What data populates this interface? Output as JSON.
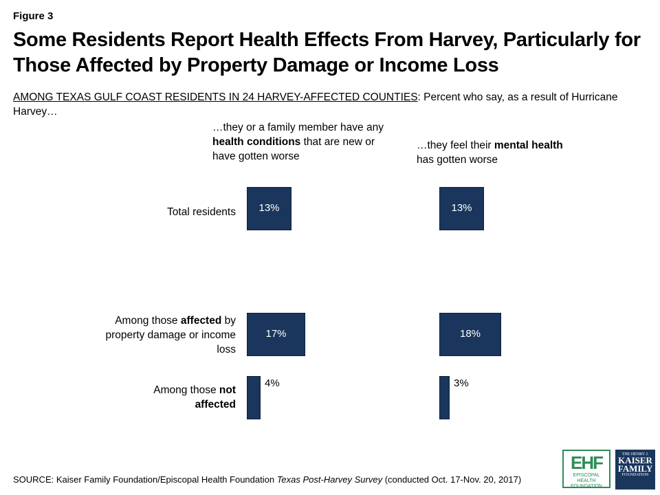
{
  "figure_label": "Figure 3",
  "title": "Some Residents Report Health Effects From Harvey, Particularly for Those Affected by Property Damage or Income Loss",
  "subtitle": {
    "underlined": "AMONG TEXAS GULF COAST RESIDENTS IN 24 HARVEY-AFFECTED COUNTIES",
    "rest": ": Percent who say, as a result of Hurricane Harvey…"
  },
  "columns": [
    {
      "pre": "…they or a family member have any ",
      "bold": "health conditions",
      "post": " that are new or have gotten worse"
    },
    {
      "pre": "…they feel their ",
      "bold": "mental health",
      "post": " has gotten worse"
    }
  ],
  "rows": [
    {
      "pre": "Total residents",
      "bold": "",
      "post": ""
    },
    {
      "pre": "Among those ",
      "bold": "affected",
      "post": " by property damage or income loss"
    },
    {
      "pre": "Among those ",
      "bold": "not affected",
      "post": ""
    }
  ],
  "chart_data": {
    "type": "bar",
    "orientation": "horizontal",
    "categories": [
      "Total residents",
      "Among those affected by property damage or income loss",
      "Among those not affected"
    ],
    "series": [
      {
        "name": "…they or a family member have any health conditions that are new or have gotten worse",
        "values": [
          13,
          17,
          4
        ]
      },
      {
        "name": "…they feel their mental health has gotten worse",
        "values": [
          13,
          18,
          3
        ]
      }
    ],
    "value_suffix": "%",
    "bar_color": "#1a365d",
    "legend": "none",
    "grid": false
  },
  "source": {
    "prefix": "SOURCE: Kaiser Family Foundation/Episcopal Health Foundation ",
    "italic": "Texas Post-Harvey Survey",
    "suffix": " (conducted Oct. 17-Nov. 20, 2017)"
  },
  "logos": {
    "ehf": {
      "line1": "EPISCOPAL HEALTH",
      "line2": "FOUNDATION"
    },
    "kff": {
      "line1": "THE HENRY J.",
      "line2": "KAISER",
      "line3": "FAMILY",
      "line4": "FOUNDATION"
    }
  }
}
